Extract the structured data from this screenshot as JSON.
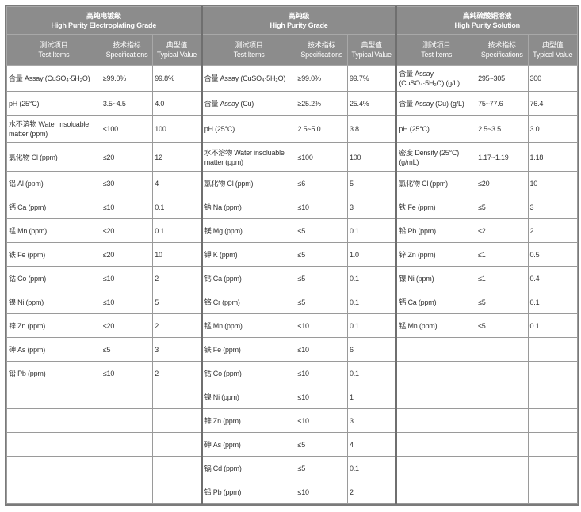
{
  "groups": [
    {
      "title_cn": "高纯电镀级",
      "title_en": "High Purity Electroplating Grade"
    },
    {
      "title_cn": "高纯级",
      "title_en": "High Purity Grade"
    },
    {
      "title_cn": "高纯硫酸铜溶液",
      "title_en": "High Purity Solution"
    }
  ],
  "columns": {
    "item_cn": "测试项目",
    "item_en": "Test Items",
    "spec_cn": "技术指标",
    "spec_en": "Specifications",
    "typ_cn": "典型值",
    "typ_en": "Typical Value"
  },
  "rows": [
    [
      [
        "含量 Assay (CuSO₄·5H₂O)",
        "≥99.0%",
        "99.8%"
      ],
      [
        "含量 Assay (CuSO₄·5H₂O)",
        "≥99.0%",
        "99.7%"
      ],
      [
        "含量 Assay (CuSO₄·5H₂O) (g/L)",
        "295~305",
        "300"
      ]
    ],
    [
      [
        "pH (25°C)",
        "3.5~4.5",
        "4.0"
      ],
      [
        "含量 Assay (Cu)",
        "≥25.2%",
        "25.4%"
      ],
      [
        "含量 Assay (Cu) (g/L)",
        "75~77.6",
        "76.4"
      ]
    ],
    [
      [
        "水不溶物 Water insoluable matter (ppm)",
        "≤100",
        "100"
      ],
      [
        "pH (25°C)",
        "2.5~5.0",
        "3.8"
      ],
      [
        "pH (25°C)",
        "2.5~3.5",
        "3.0"
      ]
    ],
    [
      [
        "氯化物 Cl (ppm)",
        "≤20",
        "12"
      ],
      [
        "水不溶物 Water insoluable matter (ppm)",
        "≤100",
        "100"
      ],
      [
        "密度 Density (25°C) (g/mL)",
        "1.17~1.19",
        "1.18"
      ]
    ],
    [
      [
        "铝 Al (ppm)",
        "≤30",
        "4"
      ],
      [
        "氯化物 Cl (ppm)",
        "≤6",
        "5"
      ],
      [
        "氯化物 Cl (ppm)",
        "≤20",
        "10"
      ]
    ],
    [
      [
        "钙 Ca (ppm)",
        "≤10",
        "0.1"
      ],
      [
        "钠 Na (ppm)",
        "≤10",
        "3"
      ],
      [
        "铁 Fe (ppm)",
        "≤5",
        "3"
      ]
    ],
    [
      [
        "锰 Mn (ppm)",
        "≤20",
        "0.1"
      ],
      [
        "镁 Mg (ppm)",
        "≤5",
        "0.1"
      ],
      [
        "铅 Pb (ppm)",
        "≤2",
        "2"
      ]
    ],
    [
      [
        "铁 Fe (ppm)",
        "≤20",
        "10"
      ],
      [
        "钾 K (ppm)",
        "≤5",
        "1.0"
      ],
      [
        "锌 Zn (ppm)",
        "≤1",
        "0.5"
      ]
    ],
    [
      [
        "钴 Co (ppm)",
        "≤10",
        "2"
      ],
      [
        "钙 Ca (ppm)",
        "≤5",
        "0.1"
      ],
      [
        "镍 Ni (ppm)",
        "≤1",
        "0.4"
      ]
    ],
    [
      [
        "镍 Ni (ppm)",
        "≤10",
        "5"
      ],
      [
        "铬 Cr (ppm)",
        "≤5",
        "0.1"
      ],
      [
        "钙 Ca (ppm)",
        "≤5",
        "0.1"
      ]
    ],
    [
      [
        "锌 Zn (ppm)",
        "≤20",
        "2"
      ],
      [
        "锰 Mn (ppm)",
        "≤10",
        "0.1"
      ],
      [
        "锰 Mn (ppm)",
        "≤5",
        "0.1"
      ]
    ],
    [
      [
        "砷 As (ppm)",
        "≤5",
        "3"
      ],
      [
        "铁 Fe (ppm)",
        "≤10",
        "6"
      ],
      [
        "",
        "",
        ""
      ]
    ],
    [
      [
        "铅 Pb (ppm)",
        "≤10",
        "2"
      ],
      [
        "钴 Co (ppm)",
        "≤10",
        "0.1"
      ],
      [
        "",
        "",
        ""
      ]
    ],
    [
      [
        "",
        "",
        ""
      ],
      [
        "镍 Ni (ppm)",
        "≤10",
        "1"
      ],
      [
        "",
        "",
        ""
      ]
    ],
    [
      [
        "",
        "",
        ""
      ],
      [
        "锌 Zn (ppm)",
        "≤10",
        "3"
      ],
      [
        "",
        "",
        ""
      ]
    ],
    [
      [
        "",
        "",
        ""
      ],
      [
        "砷 As (ppm)",
        "≤5",
        "4"
      ],
      [
        "",
        "",
        ""
      ]
    ],
    [
      [
        "",
        "",
        ""
      ],
      [
        "镉 Cd (ppm)",
        "≤5",
        "0.1"
      ],
      [
        "",
        "",
        ""
      ]
    ],
    [
      [
        "",
        "",
        ""
      ],
      [
        "铅 Pb (ppm)",
        "≤10",
        "2"
      ],
      [
        "",
        "",
        ""
      ]
    ]
  ]
}
